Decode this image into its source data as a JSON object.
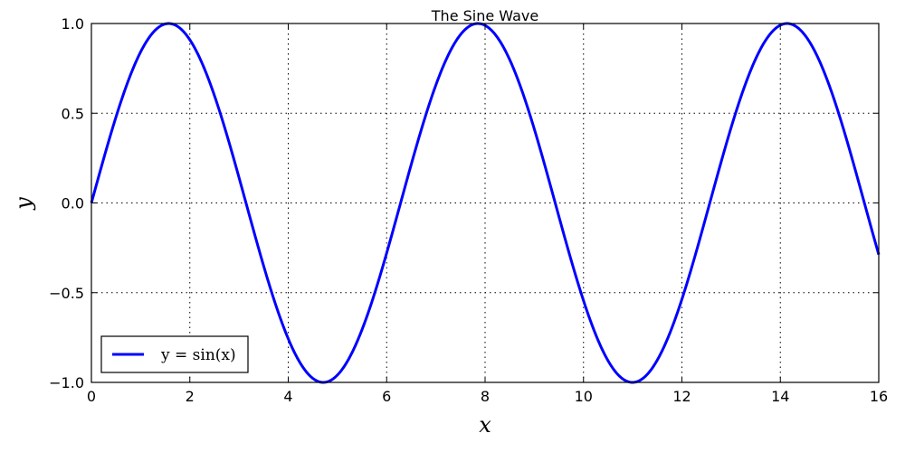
{
  "chart_data": {
    "type": "line",
    "title": "The Sine Wave",
    "xlabel": "x",
    "ylabel": "y",
    "xlim": [
      0,
      16
    ],
    "ylim": [
      -1.0,
      1.0
    ],
    "xticks": [
      0,
      2,
      4,
      6,
      8,
      10,
      12,
      14,
      16
    ],
    "xtick_labels": [
      "0",
      "2",
      "4",
      "6",
      "8",
      "10",
      "12",
      "14",
      "16"
    ],
    "yticks": [
      -1.0,
      -0.5,
      0.0,
      0.5,
      1.0
    ],
    "ytick_labels": [
      "−1.0",
      "−0.5",
      "0.0",
      "0.5",
      "1.0"
    ],
    "grid": true,
    "legend_position": "lower-left",
    "series": [
      {
        "name": "y = sin(x)",
        "color": "#0000ff",
        "function": "sin(x)",
        "x_range": [
          0,
          16
        ]
      }
    ]
  }
}
